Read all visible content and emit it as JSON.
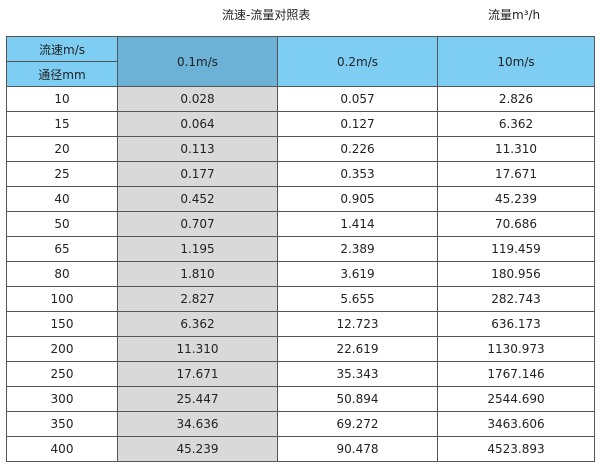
{
  "title": "流速-流量对照表",
  "unit": "流量m³/h",
  "header": {
    "speed_label": "流速m/s",
    "diameter_label": "通径mm",
    "columns": [
      "0.1m/s",
      "0.2m/s",
      "10m/s"
    ]
  },
  "colors": {
    "header": "#7ecef4",
    "header_highlight": "#6bb2d6",
    "column_highlight": "#d9d9d9"
  },
  "rows": [
    [
      "10",
      "0.028",
      "0.057",
      "2.826"
    ],
    [
      "15",
      "0.064",
      "0.127",
      "6.362"
    ],
    [
      "20",
      "0.113",
      "0.226",
      "11.310"
    ],
    [
      "25",
      "0.177",
      "0.353",
      "17.671"
    ],
    [
      "40",
      "0.452",
      "0.905",
      "45.239"
    ],
    [
      "50",
      "0.707",
      "1.414",
      "70.686"
    ],
    [
      "65",
      "1.195",
      "2.389",
      "119.459"
    ],
    [
      "80",
      "1.810",
      "3.619",
      "180.956"
    ],
    [
      "100",
      "2.827",
      "5.655",
      "282.743"
    ],
    [
      "150",
      "6.362",
      "12.723",
      "636.173"
    ],
    [
      "200",
      "11.310",
      "22.619",
      "1130.973"
    ],
    [
      "250",
      "17.671",
      "35.343",
      "1767.146"
    ],
    [
      "300",
      "25.447",
      "50.894",
      "2544.690"
    ],
    [
      "350",
      "34.636",
      "69.272",
      "3463.606"
    ],
    [
      "400",
      "45.239",
      "90.478",
      "4523.893"
    ]
  ]
}
